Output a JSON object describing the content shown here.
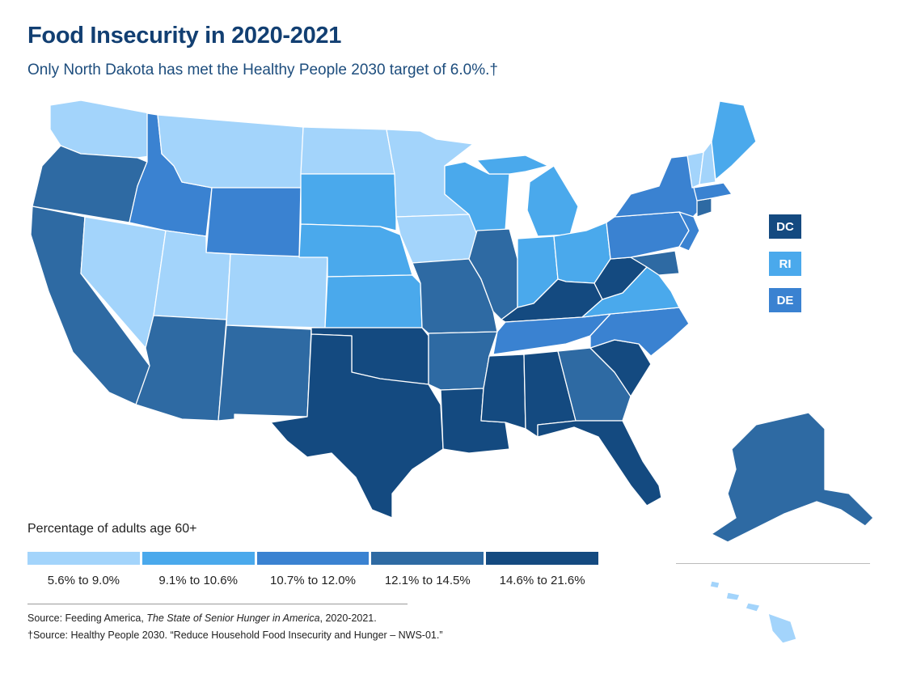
{
  "title": "Food Insecurity in 2020-2021",
  "subtitle": "Only North Dakota has met the Healthy People 2030 target of 6.0%.†",
  "map": {
    "small_states": [
      {
        "abbr": "DC",
        "level": 5
      },
      {
        "abbr": "RI",
        "level": 2
      },
      {
        "abbr": "DE",
        "level": 3
      }
    ],
    "state_levels": {
      "WA": 1,
      "OR": 4,
      "CA": 4,
      "NV": 1,
      "ID": 3,
      "MT": 1,
      "WY": 3,
      "UT": 1,
      "AZ": 4,
      "CO": 1,
      "NM": 4,
      "ND": 1,
      "SD": 2,
      "NE": 2,
      "KS": 2,
      "OK": 5,
      "TX": 5,
      "MN": 1,
      "IA": 1,
      "MO": 4,
      "AR": 4,
      "LA": 5,
      "WI": 2,
      "IL": 4,
      "MI": 2,
      "IN": 2,
      "OH": 2,
      "KY": 5,
      "TN": 3,
      "MS": 5,
      "AL": 5,
      "GA": 4,
      "FL": 5,
      "SC": 5,
      "NC": 3,
      "VA": 2,
      "WV": 5,
      "MD": 4,
      "PA": 3,
      "NY": 3,
      "NJ": 3,
      "CT": 4,
      "MA": 3,
      "VT": 1,
      "NH": 1,
      "ME": 2,
      "AK": 4,
      "HI": 1
    }
  },
  "legend": {
    "title": "Percentage of adults age 60+",
    "bins": [
      {
        "label": "5.6% to 9.0%",
        "color": "#a3d4fb"
      },
      {
        "label": "9.1% to 10.6%",
        "color": "#4aa9ec"
      },
      {
        "label": "10.7% to 12.0%",
        "color": "#3a82d1"
      },
      {
        "label": "12.1% to 14.5%",
        "color": "#2e6aa3"
      },
      {
        "label": "14.6% to 21.6%",
        "color": "#144a80"
      }
    ]
  },
  "sources": {
    "line1_prefix": "Source: Feeding America, ",
    "line1_italic": "The State of Senior Hunger in America",
    "line1_suffix": ", 2020-2021.",
    "line2": "†Source: Healthy People 2030. “Reduce Household Food Insecurity and Hunger – NWS-01.”"
  }
}
